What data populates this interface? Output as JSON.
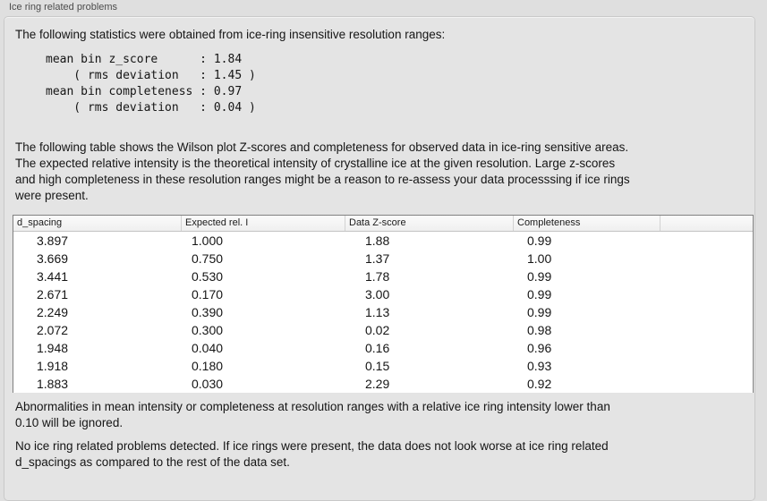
{
  "panel": {
    "title": "Ice ring related problems"
  },
  "colors": {
    "page_background": "#dfdfdf",
    "panel_background": "#e4e4e4",
    "table_background": "#ffffff",
    "table_border": "#808080"
  },
  "intro": {
    "text": "The following statistics were obtained from ice-ring insensitive resolution ranges:",
    "stats_lines": [
      "mean bin z_score      : 1.84",
      "    ( rms deviation   : 1.45 )",
      "mean bin completeness : 0.97",
      "    ( rms deviation   : 0.04 )"
    ]
  },
  "description": {
    "lines": [
      "The following table shows the Wilson plot Z-scores and completeness for observed data in ice-ring sensitive areas.",
      "The expected relative intensity is the theoretical intensity of crystalline ice at the given resolution. Large z-scores",
      "and high completeness in these resolution ranges might be a reason to re-assess your data processsing if ice rings",
      "were present."
    ]
  },
  "table": {
    "columns": [
      "d_spacing",
      "Expected rel. I",
      "Data Z-score",
      "Completeness"
    ],
    "rows": [
      [
        "3.897",
        "1.000",
        "1.88",
        "0.99"
      ],
      [
        "3.669",
        "0.750",
        "1.37",
        "1.00"
      ],
      [
        "3.441",
        "0.530",
        "1.78",
        "0.99"
      ],
      [
        "2.671",
        "0.170",
        "3.00",
        "0.99"
      ],
      [
        "2.249",
        "0.390",
        "1.13",
        "0.99"
      ],
      [
        "2.072",
        "0.300",
        "0.02",
        "0.98"
      ],
      [
        "1.948",
        "0.040",
        "0.16",
        "0.96"
      ],
      [
        "1.918",
        "0.180",
        "0.15",
        "0.93"
      ],
      [
        "1.883",
        "0.030",
        "2.29",
        "0.92"
      ]
    ]
  },
  "notes": {
    "threshold": {
      "lines": [
        "Abnormalities in mean intensity or completeness at resolution ranges with a relative ice ring intensity lower than",
        "0.10 will be ignored."
      ]
    },
    "conclusion": {
      "lines": [
        "No ice ring related problems detected. If ice rings were present, the data does not look worse at ice ring related",
        "d_spacings as compared to the rest of the data set."
      ]
    }
  }
}
